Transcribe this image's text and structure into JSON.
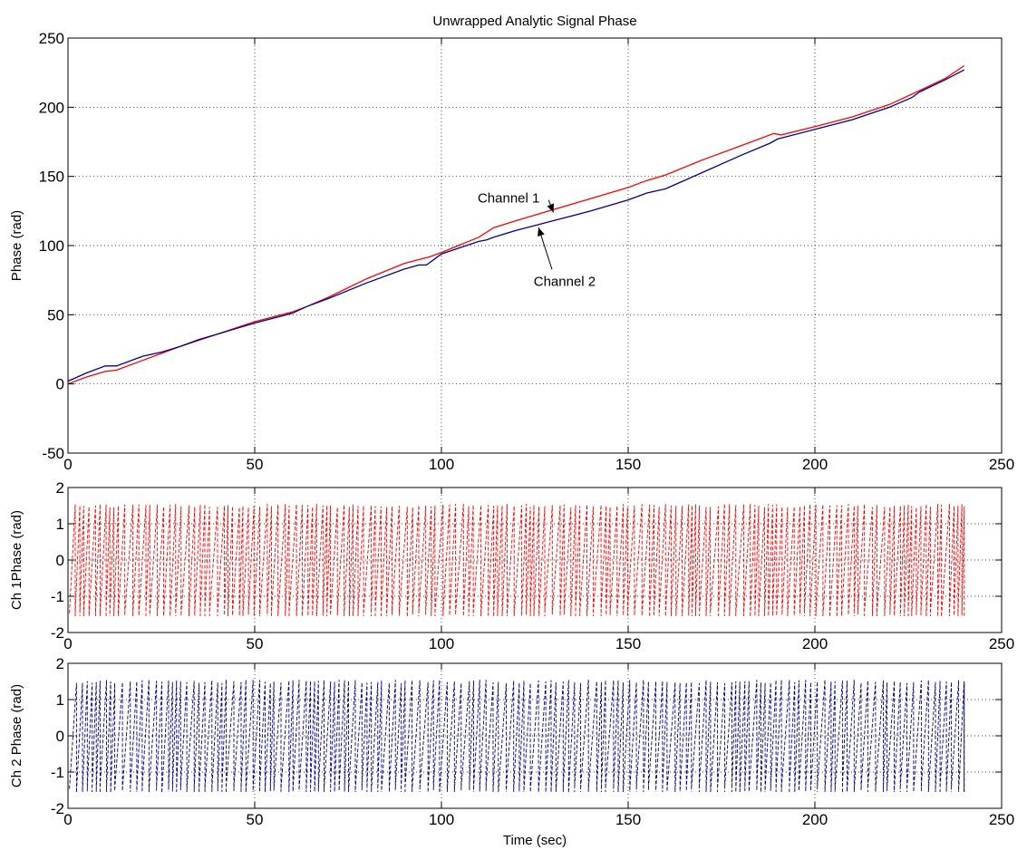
{
  "chart_data": [
    {
      "type": "line",
      "title": "Unwrapped Analytic Signal Phase",
      "xlabel": "",
      "ylabel": "Phase (rad)",
      "xlim": [
        0,
        250
      ],
      "ylim": [
        -50,
        250
      ],
      "xticks": [
        0,
        50,
        100,
        150,
        200,
        250
      ],
      "yticks": [
        -50,
        0,
        50,
        100,
        150,
        200,
        250
      ],
      "grid": true,
      "series": [
        {
          "key": "ch1",
          "color": "#ff0000",
          "x": [
            0,
            5,
            10,
            13,
            20,
            30,
            40,
            50,
            60,
            64,
            70,
            80,
            90,
            97,
            100,
            110,
            114,
            120,
            130,
            140,
            150,
            155,
            160,
            170,
            180,
            189,
            191,
            200,
            210,
            220,
            228,
            235,
            240
          ],
          "y": [
            0,
            5,
            9,
            10,
            17,
            27,
            36,
            45,
            52,
            56,
            63,
            76,
            87,
            92,
            95,
            106,
            113,
            118,
            126,
            134,
            142,
            147,
            151,
            162,
            172,
            181,
            180,
            186,
            193,
            202,
            212,
            221,
            230
          ]
        },
        {
          "key": "ch2",
          "color": "#00008b",
          "x": [
            0,
            5,
            10,
            13,
            20,
            25,
            30,
            35,
            40,
            50,
            60,
            64,
            70,
            80,
            90,
            94,
            96,
            98,
            100,
            110,
            112,
            114,
            120,
            130,
            140,
            150,
            155,
            160,
            170,
            180,
            188,
            190,
            200,
            210,
            220,
            226,
            228,
            235,
            240
          ],
          "y": [
            2,
            8,
            13,
            13,
            20,
            23,
            27,
            32,
            36,
            44,
            51,
            56,
            62,
            73,
            83,
            86,
            86,
            90,
            94,
            103,
            104,
            106,
            111,
            118,
            125,
            133,
            138,
            141,
            153,
            165,
            174,
            177,
            184,
            191,
            200,
            207,
            211,
            220,
            227
          ]
        }
      ],
      "annotations": [
        {
          "text": "Channel 1",
          "x": 118,
          "y": 131,
          "arrow_to": [
            130,
            124
          ]
        },
        {
          "text": "Channel 2",
          "x": 133,
          "y": 71,
          "arrow_to": [
            126,
            113
          ]
        }
      ]
    },
    {
      "type": "line",
      "title": "",
      "xlabel": "",
      "ylabel": "Ch 1Phase (rad)",
      "xlim": [
        0,
        250
      ],
      "ylim": [
        -2,
        2
      ],
      "xticks": [
        0,
        50,
        100,
        150,
        200,
        250
      ],
      "yticks": [
        -2,
        -1,
        0,
        1,
        2
      ],
      "grid": true,
      "series": [
        {
          "key": "ch1",
          "color": "#ff0000",
          "x_end": 240,
          "y_min": -1.55,
          "y_max": 1.55,
          "period_sec": 1.55,
          "style": "dashed"
        }
      ]
    },
    {
      "type": "line",
      "title": "",
      "xlabel": "Time (sec)",
      "ylabel": "Ch 2 Phase (rad)",
      "xlim": [
        0,
        250
      ],
      "ylim": [
        -2,
        2
      ],
      "xticks": [
        0,
        50,
        100,
        150,
        200,
        250
      ],
      "yticks": [
        -2,
        -1,
        0,
        1,
        2
      ],
      "grid": true,
      "series": [
        {
          "key": "ch2",
          "color": "#00008b",
          "x_end": 240,
          "y_min": -1.55,
          "y_max": 1.55,
          "period_sec": 1.58,
          "style": "dashed"
        }
      ]
    }
  ]
}
